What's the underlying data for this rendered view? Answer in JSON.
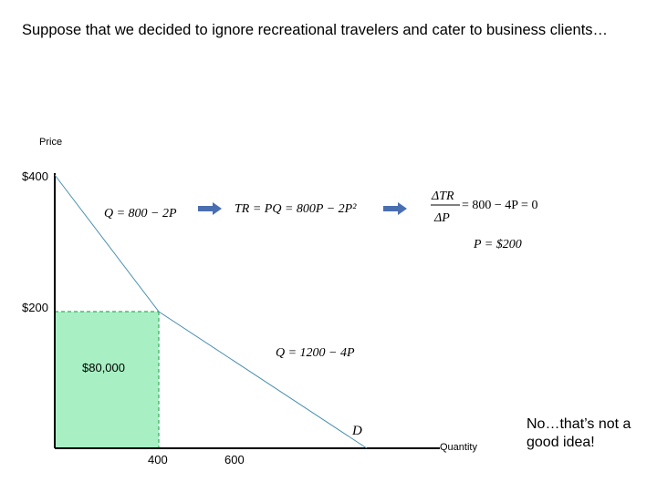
{
  "heading": "Suppose that we decided to ignore recreational travelers and cater to business clients…",
  "conclusion": "No…that’s not a good idea!",
  "chart_data": {
    "type": "line",
    "ylabel": "Price",
    "xlabel": "Quantity",
    "ylim": [
      0,
      400
    ],
    "y_ticks": [
      "$400",
      "$200"
    ],
    "x_ticks": [
      "400",
      "600"
    ],
    "series": [
      {
        "x": [
          0,
          400,
          1200
        ],
        "y": [
          400,
          200,
          0
        ],
        "label": "D"
      }
    ],
    "highlight": {
      "quantity": 400,
      "price": 200,
      "label": "$80,000",
      "fill_color": "#a8f0c4",
      "border_color": "#3aaa5a"
    },
    "line_color": "#4a8fb0",
    "arrow_color": "#4a6fb0",
    "equations": {
      "demand_upper": "Q = 800 − 2P",
      "tr": "TR = PQ = 800P − 2P²",
      "mr_num": "ΔTR",
      "mr_den": "ΔP",
      "mr_rest": "= 800 − 4P = 0",
      "price_solution": "P = $200",
      "demand_lower": "Q = 1200 − 4P"
    }
  }
}
